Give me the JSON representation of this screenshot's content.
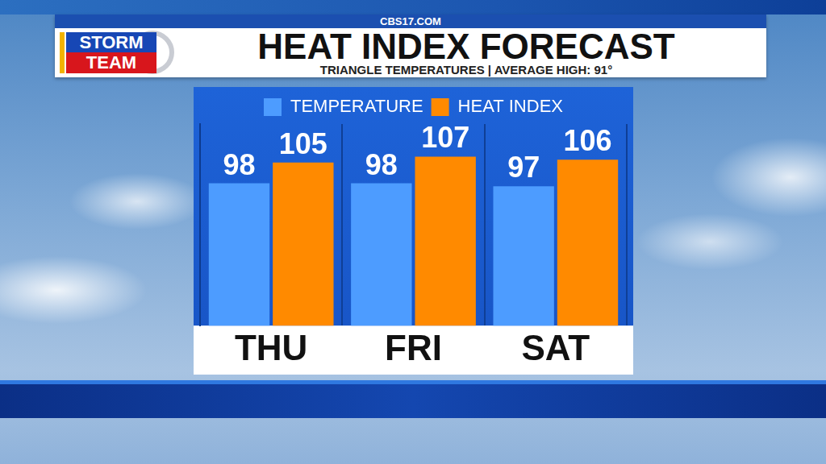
{
  "header": {
    "site": "CBS17.COM",
    "logo": [
      "STORM",
      "TEAM"
    ]
  },
  "chart_data": {
    "type": "bar",
    "title": "HEAT INDEX FORECAST",
    "subtitle": "TRIANGLE TEMPERATURES | AVERAGE HIGH: 91°",
    "categories": [
      "THU",
      "FRI",
      "SAT"
    ],
    "series": [
      {
        "name": "TEMPERATURE",
        "color": "#4d9cff",
        "values": [
          98,
          98,
          97
        ]
      },
      {
        "name": "HEAT INDEX",
        "color": "#ff8a00",
        "values": [
          105,
          107,
          106
        ]
      }
    ],
    "ylim": [
      50,
      118
    ],
    "legend": "top",
    "grid": "x",
    "data_labels": true,
    "tick_labels": "x"
  }
}
